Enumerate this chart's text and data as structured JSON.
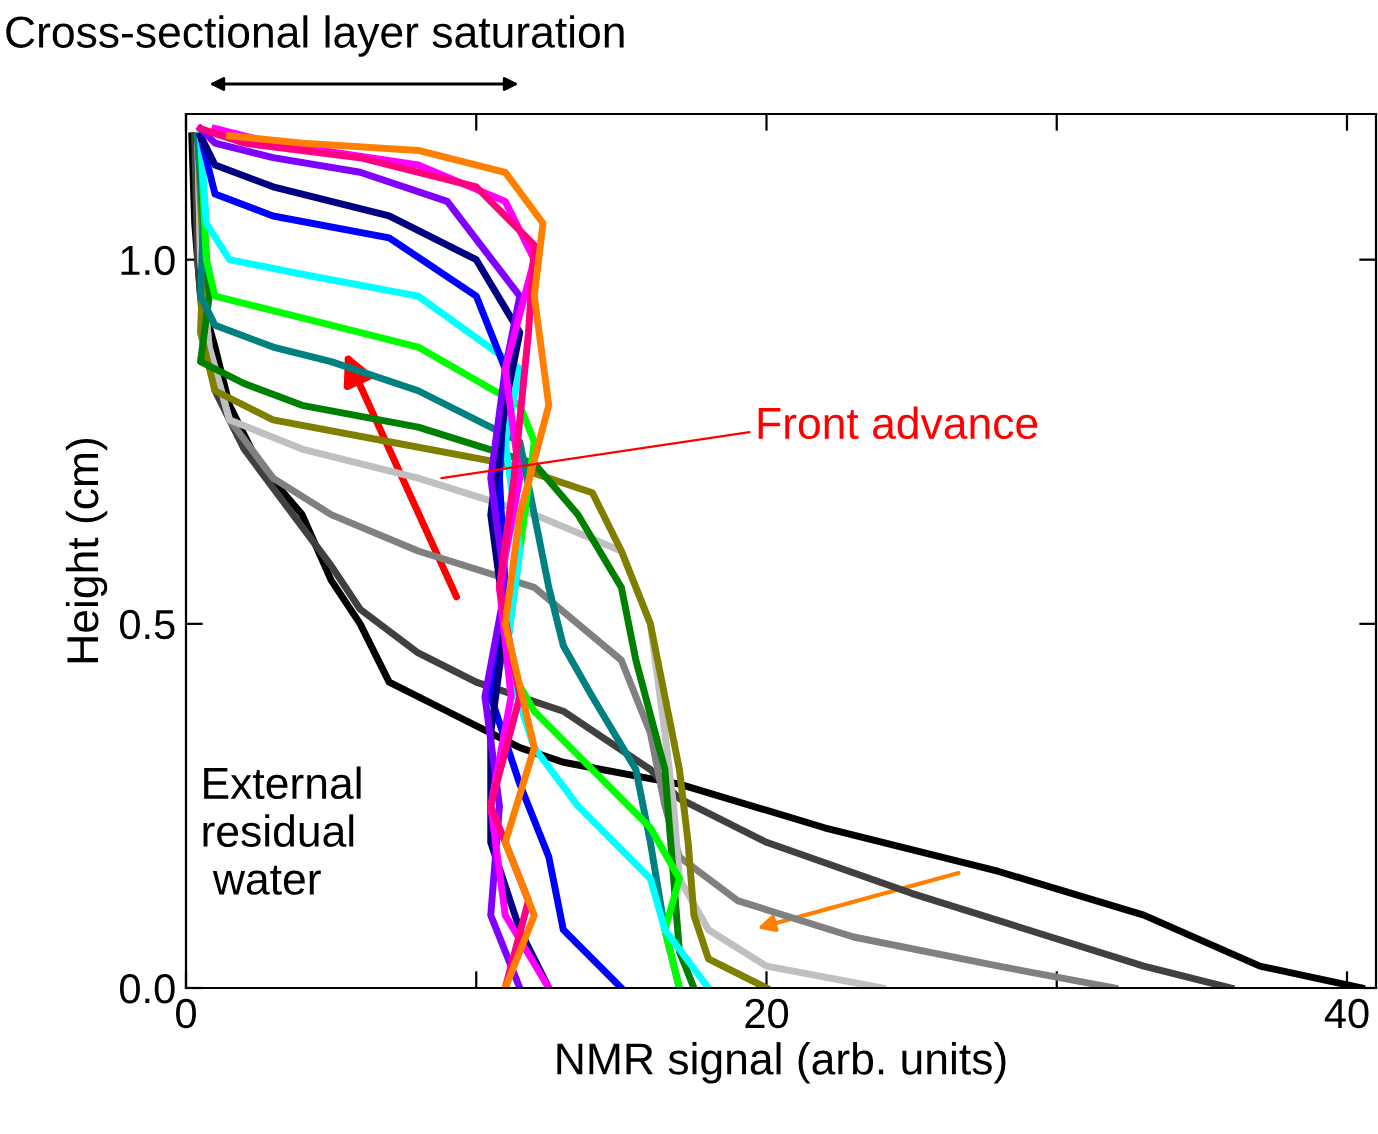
{
  "chart_data": {
    "type": "line",
    "xlabel": "NMR signal (arb. units)",
    "ylabel": "Height (cm)",
    "xlim": [
      0,
      41
    ],
    "ylim": [
      0,
      1.2
    ],
    "xticks": [
      0,
      {
        "value": 10,
        "label": null
      },
      20,
      {
        "value": 30,
        "label": null
      },
      40
    ],
    "yticks": [
      {
        "value": 0,
        "label": "0.0"
      },
      {
        "value": 0.5,
        "label": "0.5"
      },
      {
        "value": 1,
        "label": "1.0"
      }
    ],
    "grid": false,
    "legend": false,
    "line_style": "solid",
    "marker": "none",
    "annotations": [
      "Cross-sectional layer saturation",
      {
        "text": "Front advance",
        "x": 8.8,
        "y": 0.7
      },
      "External\nresidual\n water"
    ],
    "series": [
      {
        "color": "#000000",
        "x": [
          40.5,
          37,
          33,
          28,
          22,
          17,
          13,
          11.5,
          9,
          7,
          6,
          5,
          4,
          2.5,
          1.5,
          1,
          0.5,
          0.3,
          0.2
        ],
        "values": [
          0,
          0.03,
          0.1,
          0.16,
          0.22,
          0.28,
          0.31,
          0.33,
          0.38,
          0.42,
          0.5,
          0.56,
          0.65,
          0.72,
          0.8,
          0.88,
          0.95,
          1.05,
          1.17
        ]
      },
      {
        "color": "#404040",
        "x": [
          36,
          33,
          29,
          25,
          20,
          17,
          16,
          13,
          10,
          8,
          6,
          5,
          3.5,
          2,
          1,
          0.6,
          0.4,
          0.3
        ],
        "values": [
          0,
          0.03,
          0.08,
          0.13,
          0.2,
          0.26,
          0.3,
          0.38,
          0.42,
          0.46,
          0.52,
          0.58,
          0.66,
          0.74,
          0.82,
          0.9,
          1.0,
          1.17
        ]
      },
      {
        "color": "#808080",
        "x": [
          32,
          28,
          23,
          19,
          17,
          16.5,
          16,
          15,
          12,
          8,
          5,
          3,
          1.5,
          0.8,
          0.5,
          0.4
        ],
        "values": [
          0,
          0.03,
          0.07,
          0.12,
          0.18,
          0.25,
          0.35,
          0.45,
          0.55,
          0.6,
          0.65,
          0.7,
          0.78,
          0.88,
          1.0,
          1.17
        ]
      },
      {
        "color": "#c0c0c0",
        "x": [
          24,
          20,
          18,
          17,
          16.8,
          16.5,
          16,
          15,
          12,
          8,
          4,
          1.5,
          0.8,
          0.5,
          0.4
        ],
        "values": [
          0,
          0.03,
          0.08,
          0.15,
          0.25,
          0.35,
          0.5,
          0.6,
          0.65,
          0.7,
          0.74,
          0.78,
          0.88,
          1.0,
          1.17
        ]
      },
      {
        "color": "#808000",
        "x": [
          20,
          18,
          17.5,
          17.3,
          17,
          16.5,
          16,
          15,
          14,
          11,
          7,
          3,
          1,
          0.5,
          0.6,
          0.4
        ],
        "values": [
          0,
          0.04,
          0.1,
          0.2,
          0.3,
          0.4,
          0.5,
          0.6,
          0.68,
          0.72,
          0.75,
          0.78,
          0.82,
          0.9,
          1.0,
          1.17
        ]
      },
      {
        "color": "#008000",
        "x": [
          17.5,
          17,
          16.8,
          16.5,
          15.5,
          15,
          13.5,
          12,
          8,
          4,
          2,
          0.5,
          0.8,
          0.4
        ],
        "values": [
          0,
          0.05,
          0.15,
          0.3,
          0.45,
          0.55,
          0.65,
          0.72,
          0.77,
          0.8,
          0.83,
          0.86,
          0.95,
          1.17
        ]
      },
      {
        "color": "#008080",
        "x": [
          17,
          16.5,
          16,
          15.5,
          14,
          13,
          12.5,
          12,
          11.5,
          8,
          5,
          3,
          1,
          0.5,
          0.6,
          0.4
        ],
        "values": [
          0,
          0.08,
          0.2,
          0.3,
          0.4,
          0.47,
          0.55,
          0.65,
          0.75,
          0.82,
          0.86,
          0.88,
          0.91,
          0.95,
          1.05,
          1.17
        ]
      },
      {
        "color": "#00ff00",
        "x": [
          17,
          16.5,
          17,
          16,
          14,
          12,
          11,
          11.5,
          12,
          11.5,
          8,
          4,
          1,
          0.7,
          0.5
        ],
        "values": [
          0,
          0.08,
          0.15,
          0.22,
          0.3,
          0.38,
          0.45,
          0.6,
          0.75,
          0.8,
          0.88,
          0.92,
          0.95,
          1.0,
          1.17
        ]
      },
      {
        "color": "#00ffff",
        "x": [
          18,
          16.5,
          16,
          13.5,
          12,
          11,
          11.5,
          11,
          11.5,
          8,
          4,
          1.5,
          0.7,
          0.5
        ],
        "values": [
          0,
          0.08,
          0.15,
          0.25,
          0.33,
          0.45,
          0.6,
          0.75,
          0.85,
          0.95,
          0.98,
          1.0,
          1.05,
          1.17
        ]
      },
      {
        "color": "#0000ff",
        "x": [
          15,
          13,
          12.5,
          11.5,
          10.5,
          11,
          10.8,
          11,
          10,
          7,
          3,
          1,
          0.5
        ],
        "values": [
          0,
          0.08,
          0.18,
          0.28,
          0.4,
          0.55,
          0.7,
          0.85,
          0.95,
          1.03,
          1.06,
          1.09,
          1.17
        ]
      },
      {
        "color": "#000080",
        "x": [
          12.5,
          11.5,
          10.5,
          10.5,
          11,
          10.5,
          11,
          11.5,
          10,
          7,
          3,
          1,
          0.5
        ],
        "values": [
          0,
          0.08,
          0.2,
          0.35,
          0.5,
          0.65,
          0.8,
          0.9,
          1.0,
          1.06,
          1.1,
          1.13,
          1.17
        ]
      },
      {
        "color": "#8000ff",
        "x": [
          11.5,
          10.5,
          10.8,
          10.3,
          11,
          10.5,
          11,
          11.5,
          9,
          6,
          3,
          1,
          0.5
        ],
        "values": [
          0,
          0.1,
          0.25,
          0.4,
          0.55,
          0.7,
          0.85,
          0.95,
          1.08,
          1.12,
          1.14,
          1.16,
          1.18
        ]
      },
      {
        "color": "#ff00ff",
        "x": [
          12.5,
          11,
          10.5,
          11.2,
          10.8,
          11.5,
          11,
          12,
          11,
          8,
          3,
          1
        ],
        "values": [
          0,
          0.1,
          0.25,
          0.4,
          0.55,
          0.7,
          0.85,
          1.0,
          1.08,
          1.13,
          1.16,
          1.18
        ]
      },
      {
        "color": "#ff0080",
        "x": [
          11,
          11.8,
          10.5,
          11.5,
          10.8,
          11.3,
          11.8,
          12,
          10,
          6,
          2,
          0.5
        ],
        "values": [
          0,
          0.12,
          0.25,
          0.4,
          0.55,
          0.7,
          0.9,
          1.02,
          1.1,
          1.14,
          1.16,
          1.18
        ]
      },
      {
        "color": "#ff8000",
        "x": [
          11,
          12,
          11,
          12,
          11,
          11.5,
          12.5,
          12,
          12.3,
          11,
          8,
          4,
          1.5
        ],
        "values": [
          0,
          0.1,
          0.2,
          0.33,
          0.5,
          0.65,
          0.8,
          0.95,
          1.05,
          1.12,
          1.15,
          1.16,
          1.17
        ]
      }
    ]
  }
}
